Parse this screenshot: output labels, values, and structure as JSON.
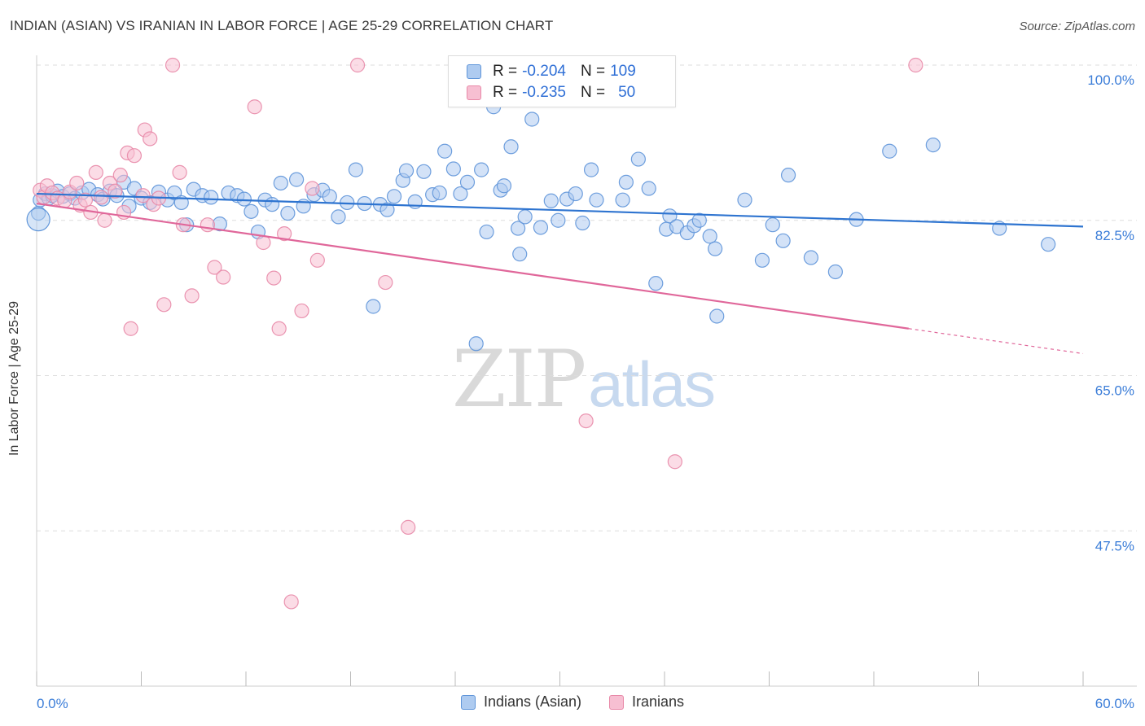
{
  "header": {
    "title": "INDIAN (ASIAN) VS IRANIAN IN LABOR FORCE | AGE 25-29 CORRELATION CHART",
    "source": "Source: ZipAtlas.com"
  },
  "watermark": {
    "zip": "ZIP",
    "atlas": "atlas"
  },
  "colors": {
    "blue_fill": "#aecbf0",
    "blue_stroke": "#5f95d9",
    "blue_line": "#2e74d0",
    "pink_fill": "#f7bfd2",
    "pink_stroke": "#e889a8",
    "pink_line": "#e0679a",
    "tick_text": "#3b7dd8",
    "grid": "#dddddd"
  },
  "legend": {
    "rows": [
      {
        "r_label": "R =",
        "r_value": "-0.204",
        "n_label": "N =",
        "n_value": "109"
      },
      {
        "r_label": "R =",
        "r_value": "-0.235",
        "n_label": "N =",
        "n_value": "50"
      }
    ]
  },
  "bottom_legend": [
    "Indians (Asian)",
    "Iranians"
  ],
  "chart_data": {
    "type": "scatter",
    "title": "INDIAN (ASIAN) VS IRANIAN IN LABOR FORCE | AGE 25-29 CORRELATION CHART",
    "xlabel": "",
    "ylabel": "In Labor Force | Age 25-29",
    "xlim": [
      0,
      60
    ],
    "ylim": [
      30,
      100
    ],
    "x_tick_labels": [
      {
        "value": 0,
        "label": "0.0%"
      },
      {
        "value": 60,
        "label": "60.0%"
      }
    ],
    "y_tick_labels": [
      {
        "value": 100,
        "label": "100.0%"
      },
      {
        "value": 82.5,
        "label": "82.5%"
      },
      {
        "value": 65,
        "label": "65.0%"
      },
      {
        "value": 47.5,
        "label": "47.5%"
      }
    ],
    "grid": "horizontal dashed",
    "legend_position": "top-center",
    "series": [
      {
        "name": "Indians (Asian)",
        "color": "#aecbf0",
        "trend": {
          "x": [
            0,
            60
          ],
          "y": [
            85.5,
            81.8
          ]
        },
        "points": [
          [
            0.1,
            83.3
          ],
          [
            0.2,
            84.8
          ],
          [
            0.5,
            85.5
          ],
          [
            0.7,
            85.0
          ],
          [
            0.9,
            85.3
          ],
          [
            1.2,
            85.8
          ],
          [
            1.5,
            85.2
          ],
          [
            1.9,
            85.5
          ],
          [
            2.2,
            85.0
          ],
          [
            2.6,
            85.6
          ],
          [
            3.0,
            86.0
          ],
          [
            3.5,
            85.4
          ],
          [
            3.8,
            84.9
          ],
          [
            4.2,
            85.8
          ],
          [
            4.6,
            85.3
          ],
          [
            5.0,
            86.8
          ],
          [
            5.3,
            84.1
          ],
          [
            5.6,
            86.1
          ],
          [
            6.0,
            85.0
          ],
          [
            6.5,
            84.5
          ],
          [
            7.0,
            85.7
          ],
          [
            7.5,
            84.8
          ],
          [
            7.9,
            85.6
          ],
          [
            8.3,
            84.5
          ],
          [
            8.6,
            82.0
          ],
          [
            9.0,
            86.0
          ],
          [
            9.5,
            85.3
          ],
          [
            10.0,
            85.1
          ],
          [
            10.5,
            82.1
          ],
          [
            11.0,
            85.6
          ],
          [
            11.5,
            85.3
          ],
          [
            11.9,
            84.9
          ],
          [
            12.3,
            83.5
          ],
          [
            12.7,
            81.2
          ],
          [
            13.1,
            84.8
          ],
          [
            13.5,
            84.3
          ],
          [
            14.0,
            86.7
          ],
          [
            14.4,
            83.3
          ],
          [
            14.9,
            87.1
          ],
          [
            15.3,
            84.1
          ],
          [
            15.9,
            85.4
          ],
          [
            16.4,
            85.9
          ],
          [
            16.8,
            85.2
          ],
          [
            17.3,
            82.9
          ],
          [
            17.8,
            84.5
          ],
          [
            18.3,
            88.2
          ],
          [
            18.8,
            84.4
          ],
          [
            19.3,
            72.8
          ],
          [
            19.7,
            84.3
          ],
          [
            20.1,
            83.7
          ],
          [
            20.5,
            85.2
          ],
          [
            21.0,
            87.0
          ],
          [
            21.2,
            88.1
          ],
          [
            21.7,
            84.6
          ],
          [
            22.2,
            88.0
          ],
          [
            22.7,
            85.4
          ],
          [
            23.1,
            85.6
          ],
          [
            23.4,
            90.3
          ],
          [
            23.9,
            88.3
          ],
          [
            24.3,
            85.5
          ],
          [
            24.7,
            86.8
          ],
          [
            25.2,
            68.6
          ],
          [
            25.5,
            88.2
          ],
          [
            25.8,
            81.2
          ],
          [
            26.2,
            95.3
          ],
          [
            26.6,
            85.9
          ],
          [
            26.8,
            86.4
          ],
          [
            27.2,
            90.8
          ],
          [
            27.6,
            81.6
          ],
          [
            27.7,
            78.7
          ],
          [
            28.0,
            82.9
          ],
          [
            28.4,
            93.9
          ],
          [
            28.9,
            81.7
          ],
          [
            29.5,
            84.7
          ],
          [
            29.9,
            82.5
          ],
          [
            30.4,
            84.9
          ],
          [
            30.9,
            85.5
          ],
          [
            31.3,
            82.2
          ],
          [
            31.8,
            88.2
          ],
          [
            32.1,
            84.8
          ],
          [
            33.6,
            84.8
          ],
          [
            33.8,
            86.8
          ],
          [
            34.5,
            89.4
          ],
          [
            35.1,
            86.1
          ],
          [
            35.5,
            75.4
          ],
          [
            36.1,
            81.5
          ],
          [
            36.3,
            83.0
          ],
          [
            36.7,
            81.8
          ],
          [
            37.3,
            81.1
          ],
          [
            37.7,
            81.9
          ],
          [
            38.0,
            82.5
          ],
          [
            38.6,
            80.7
          ],
          [
            38.9,
            79.3
          ],
          [
            39.0,
            71.7
          ],
          [
            40.6,
            84.8
          ],
          [
            41.6,
            78.0
          ],
          [
            42.2,
            82.0
          ],
          [
            42.8,
            80.2
          ],
          [
            43.1,
            87.6
          ],
          [
            44.4,
            78.3
          ],
          [
            45.8,
            76.7
          ],
          [
            47.0,
            82.6
          ],
          [
            48.9,
            90.3
          ],
          [
            51.4,
            91.0
          ],
          [
            55.2,
            81.6
          ],
          [
            58.0,
            79.8
          ]
        ]
      },
      {
        "name": "Iranians",
        "color": "#f7bfd2",
        "trend": {
          "x": [
            0,
            50
          ],
          "y": [
            84.4,
            70.3
          ]
        },
        "points": [
          [
            0.2,
            85.9
          ],
          [
            0.4,
            85.1
          ],
          [
            0.6,
            86.4
          ],
          [
            0.9,
            85.6
          ],
          [
            1.2,
            85.0
          ],
          [
            1.6,
            84.7
          ],
          [
            1.9,
            85.7
          ],
          [
            2.3,
            86.7
          ],
          [
            2.5,
            84.2
          ],
          [
            2.8,
            84.8
          ],
          [
            3.1,
            83.4
          ],
          [
            3.4,
            87.9
          ],
          [
            3.7,
            85.1
          ],
          [
            3.9,
            82.5
          ],
          [
            4.2,
            86.7
          ],
          [
            4.5,
            85.8
          ],
          [
            4.8,
            87.6
          ],
          [
            5.0,
            83.4
          ],
          [
            5.2,
            90.1
          ],
          [
            5.4,
            70.3
          ],
          [
            5.6,
            89.8
          ],
          [
            6.1,
            85.3
          ],
          [
            6.2,
            92.7
          ],
          [
            6.5,
            91.7
          ],
          [
            6.7,
            84.3
          ],
          [
            7.0,
            85.0
          ],
          [
            7.3,
            73.0
          ],
          [
            7.8,
            100.0
          ],
          [
            8.2,
            87.9
          ],
          [
            8.4,
            82.0
          ],
          [
            8.9,
            74.0
          ],
          [
            9.8,
            82.0
          ],
          [
            10.2,
            77.2
          ],
          [
            10.7,
            76.1
          ],
          [
            12.5,
            95.3
          ],
          [
            13.0,
            80.0
          ],
          [
            13.6,
            76.0
          ],
          [
            13.9,
            70.3
          ],
          [
            14.2,
            81.0
          ],
          [
            14.6,
            39.5
          ],
          [
            15.2,
            72.3
          ],
          [
            15.8,
            86.1
          ],
          [
            16.1,
            78.0
          ],
          [
            18.4,
            100.0
          ],
          [
            20.0,
            75.5
          ],
          [
            21.3,
            47.9
          ],
          [
            31.5,
            59.9
          ],
          [
            36.6,
            55.3
          ],
          [
            50.4,
            100.0
          ]
        ]
      }
    ]
  }
}
